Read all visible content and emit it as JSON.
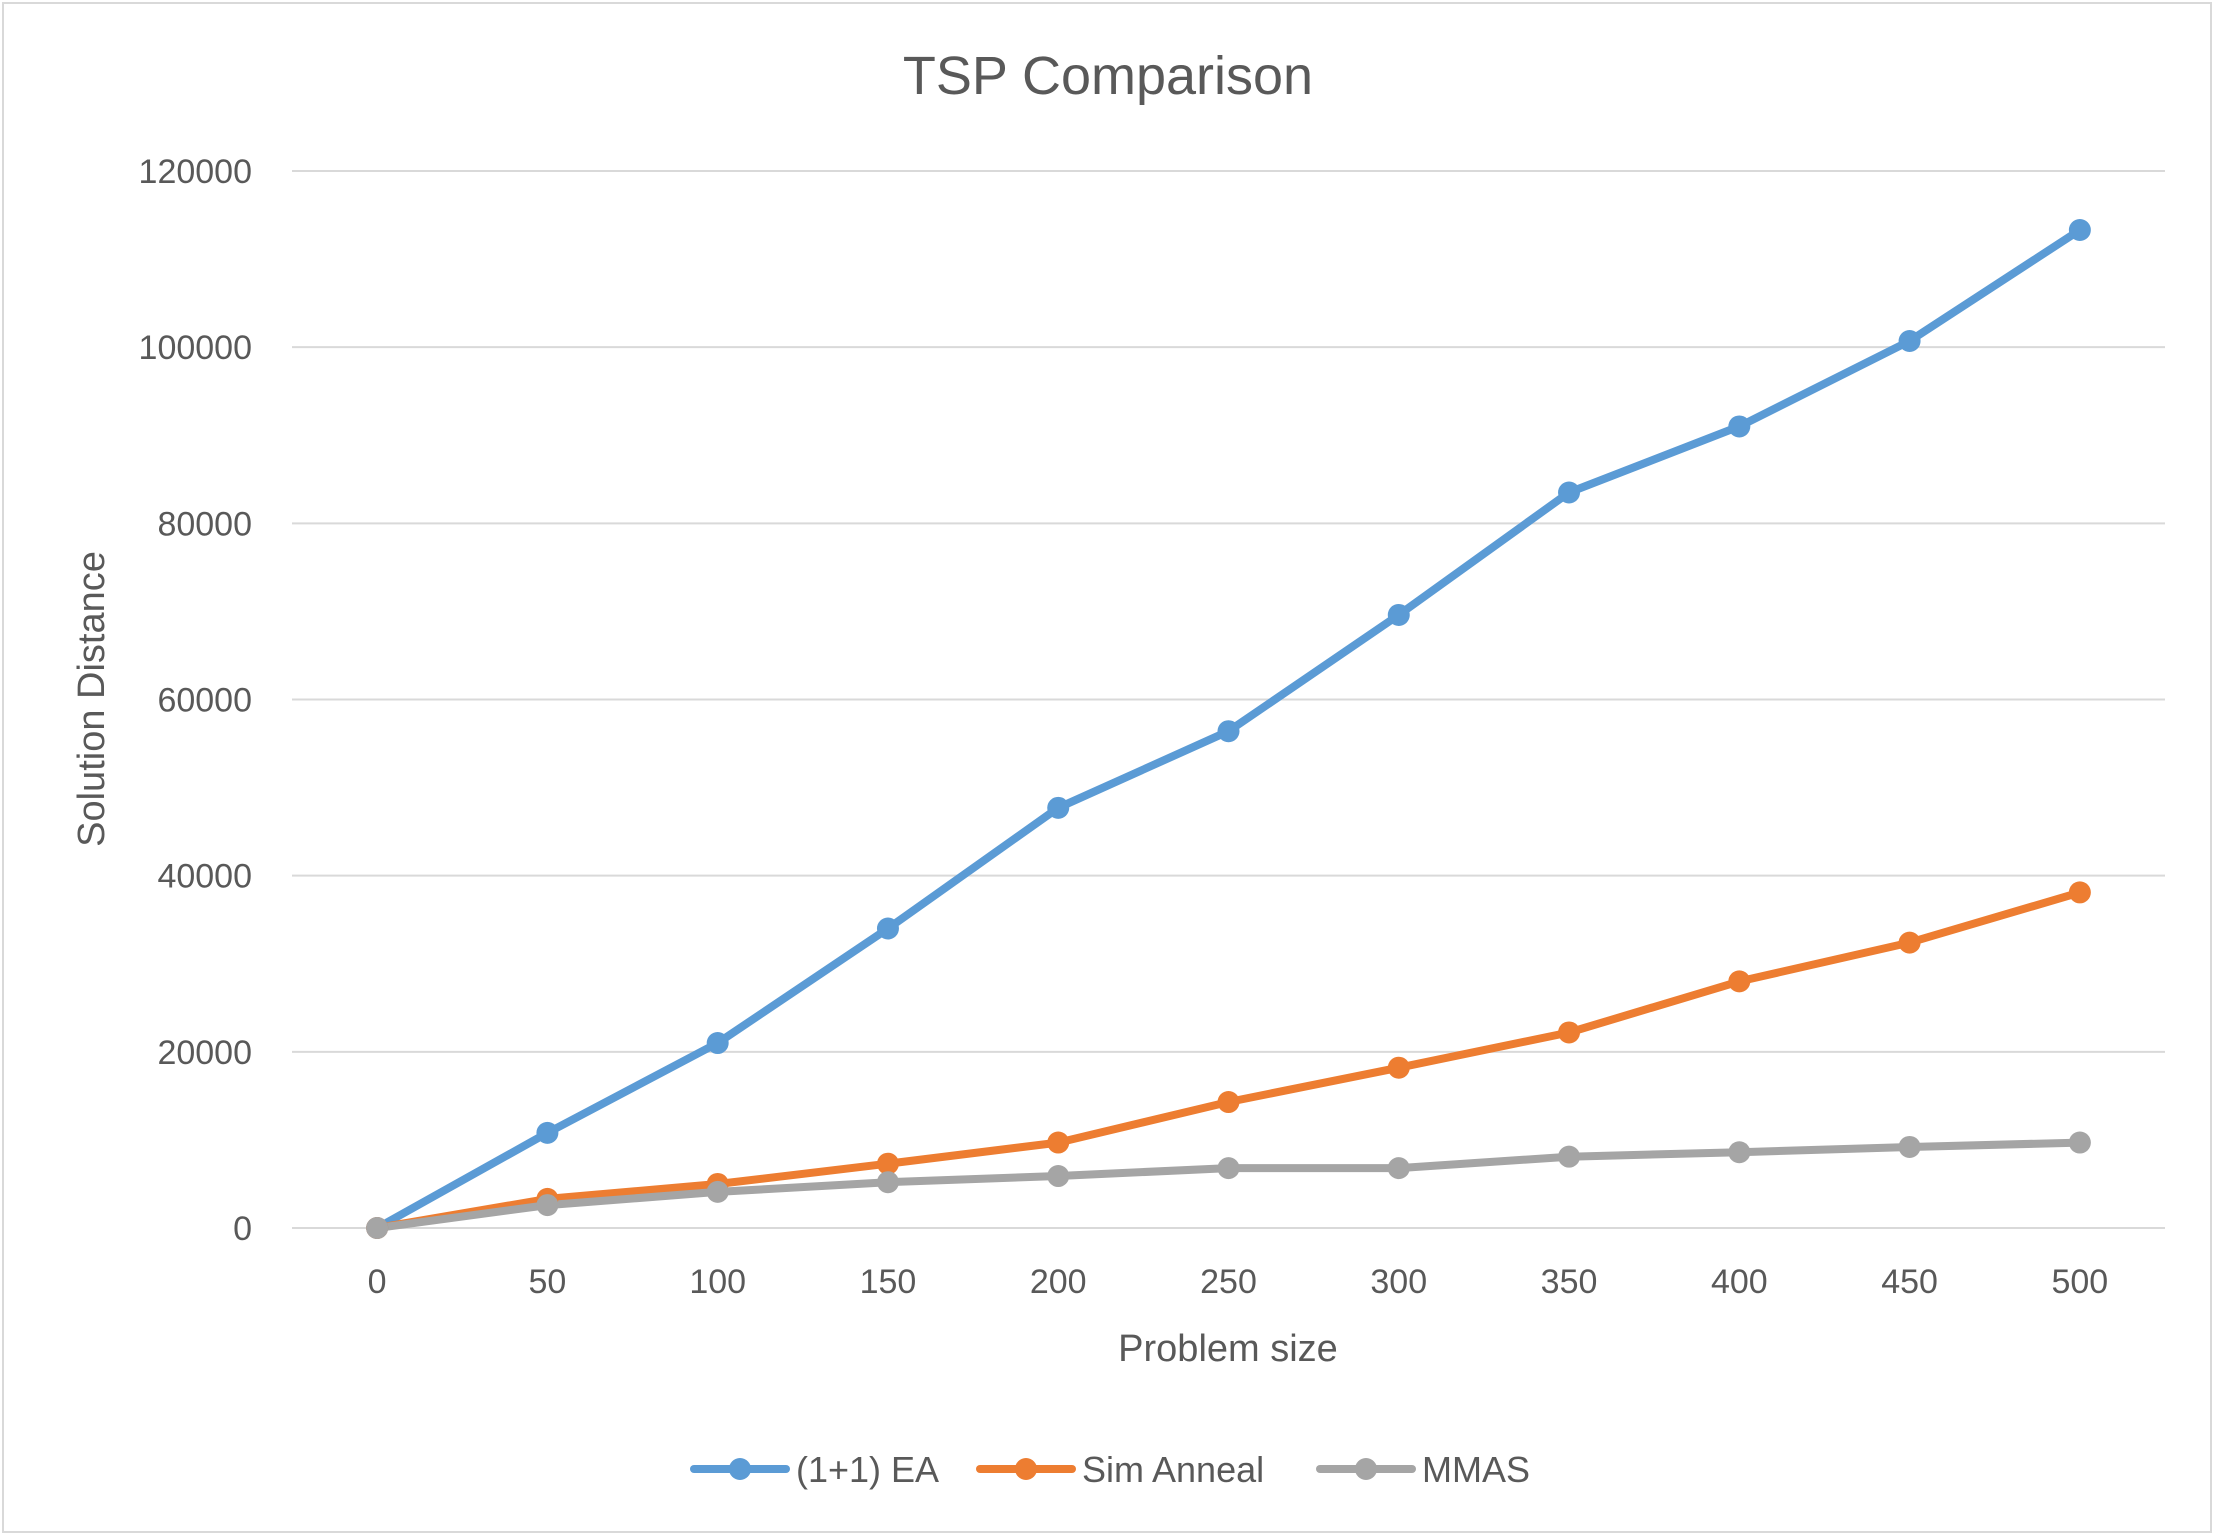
{
  "chart_data": {
    "type": "line",
    "title": "TSP Comparison",
    "xlabel": "Problem size",
    "ylabel": "Solution Distance",
    "x": [
      0,
      50,
      100,
      150,
      200,
      250,
      300,
      350,
      400,
      450,
      500
    ],
    "x_tick_labels": [
      "0",
      "50",
      "100",
      "150",
      "200",
      "250",
      "300",
      "350",
      "400",
      "450",
      "500"
    ],
    "y_tick_labels": [
      "0",
      "20000",
      "40000",
      "60000",
      "80000",
      "100000",
      "120000"
    ],
    "y_ticks": [
      0,
      20000,
      40000,
      60000,
      80000,
      100000,
      120000
    ],
    "xlim": [
      -25,
      525
    ],
    "ylim": [
      0,
      120000
    ],
    "grid": "horizontal",
    "legend_position": "bottom",
    "series": [
      {
        "name": "(1+1) EA",
        "color": "#5b9bd5",
        "marker": "circle",
        "values": [
          0,
          10800,
          21000,
          34000,
          47700,
          56400,
          69600,
          83500,
          91000,
          100700,
          113300
        ]
      },
      {
        "name": "Sim Anneal",
        "color": "#ed7d31",
        "marker": "circle",
        "values": [
          0,
          3300,
          5000,
          7300,
          9700,
          14300,
          18200,
          22200,
          28000,
          32400,
          38100
        ]
      },
      {
        "name": "MMAS",
        "color": "#a5a5a5",
        "marker": "circle",
        "values": [
          0,
          2600,
          4100,
          5200,
          5900,
          6800,
          6800,
          8100,
          8600,
          9200,
          9700
        ]
      }
    ]
  },
  "colors": {
    "gridline": "#d9d9d9",
    "text": "#595959",
    "border": "#d9d9d9"
  }
}
